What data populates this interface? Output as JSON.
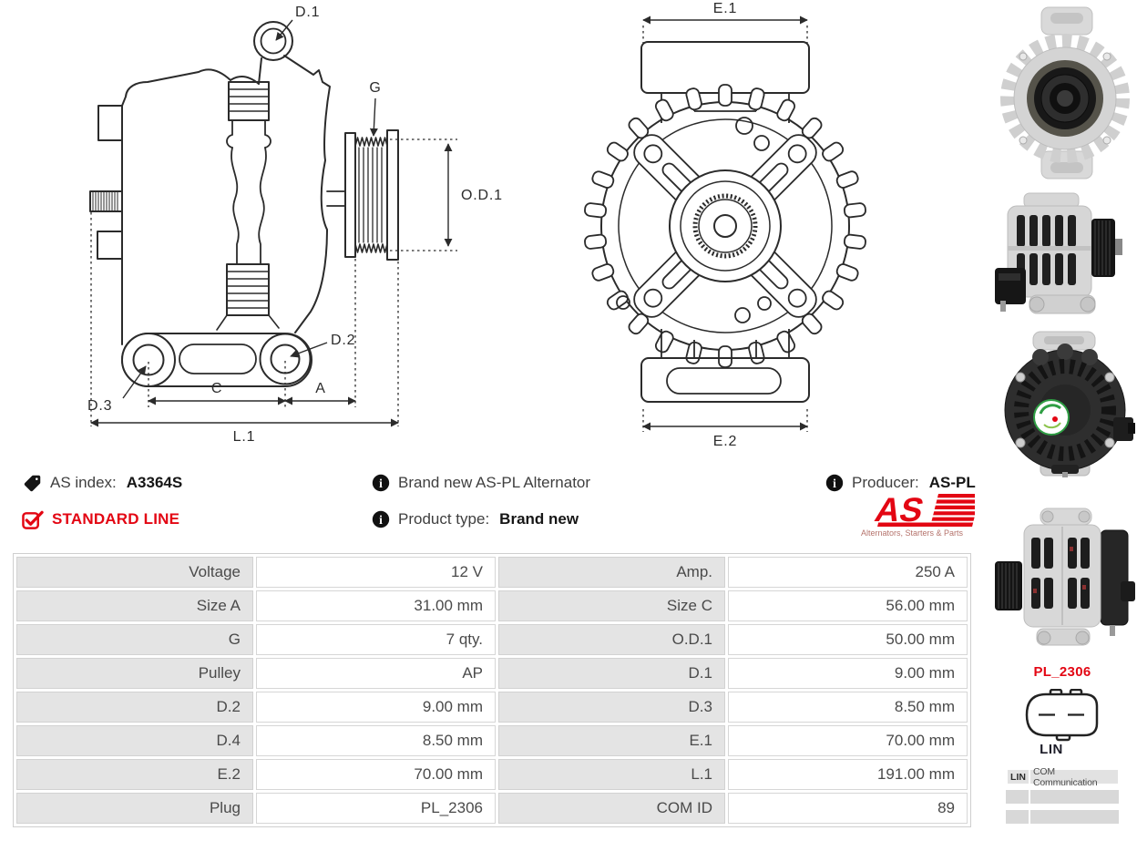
{
  "colors": {
    "accent_red": "#e30613",
    "drawing_line": "#2b2b2b",
    "label_cell_bg": "#e4e4e4"
  },
  "icons": {
    "as_index": "tag-icon",
    "standard_line": "checkbox-checked-icon",
    "info": "info-icon"
  },
  "info": {
    "as_index_label": "AS index:",
    "as_index_value": "A3364S",
    "standard_line_label": "STANDARD LINE",
    "brand_line": "Brand new AS-PL Alternator",
    "product_type_label": "Product type:",
    "product_type_value": "Brand new",
    "producer_label": "Producer:",
    "producer_value": "AS-PL"
  },
  "logo": {
    "as_text": "AS",
    "tagline": "Alternators, Starters & Parts"
  },
  "drawing_labels": {
    "d1": "D.1",
    "g": "G",
    "od1": "O.D.1",
    "d2": "D.2",
    "d3": "D.3",
    "c": "C",
    "a": "A",
    "l1": "L.1",
    "e1": "E.1",
    "e2": "E.2"
  },
  "spec_table": {
    "rows": [
      {
        "l1": "Voltage",
        "v1": "12 V",
        "l2": "Amp.",
        "v2": "250 A"
      },
      {
        "l1": "Size A",
        "v1": "31.00 mm",
        "l2": "Size C",
        "v2": "56.00 mm"
      },
      {
        "l1": "G",
        "v1": "7 qty.",
        "l2": "O.D.1",
        "v2": "50.00 mm"
      },
      {
        "l1": "Pulley",
        "v1": "AP",
        "l2": "D.1",
        "v2": "9.00 mm"
      },
      {
        "l1": "D.2",
        "v1": "9.00 mm",
        "l2": "D.3",
        "v2": "8.50 mm"
      },
      {
        "l1": "D.4",
        "v1": "8.50 mm",
        "l2": "E.1",
        "v2": "70.00 mm"
      },
      {
        "l1": "E.2",
        "v1": "70.00 mm",
        "l2": "L.1",
        "v2": "191.00 mm"
      },
      {
        "l1": "Plug",
        "v1": "PL_2306",
        "l2": "COM ID",
        "v2": "89"
      }
    ]
  },
  "sidebar": {
    "plug_code": "PL_2306",
    "plug_name": "LIN",
    "com_row": {
      "key": "LIN",
      "value": "COM Communication"
    },
    "photos": [
      "alternator-front-photo",
      "alternator-side-pulley-right-photo",
      "alternator-rear-photo",
      "alternator-side-pulley-left-photo"
    ]
  }
}
